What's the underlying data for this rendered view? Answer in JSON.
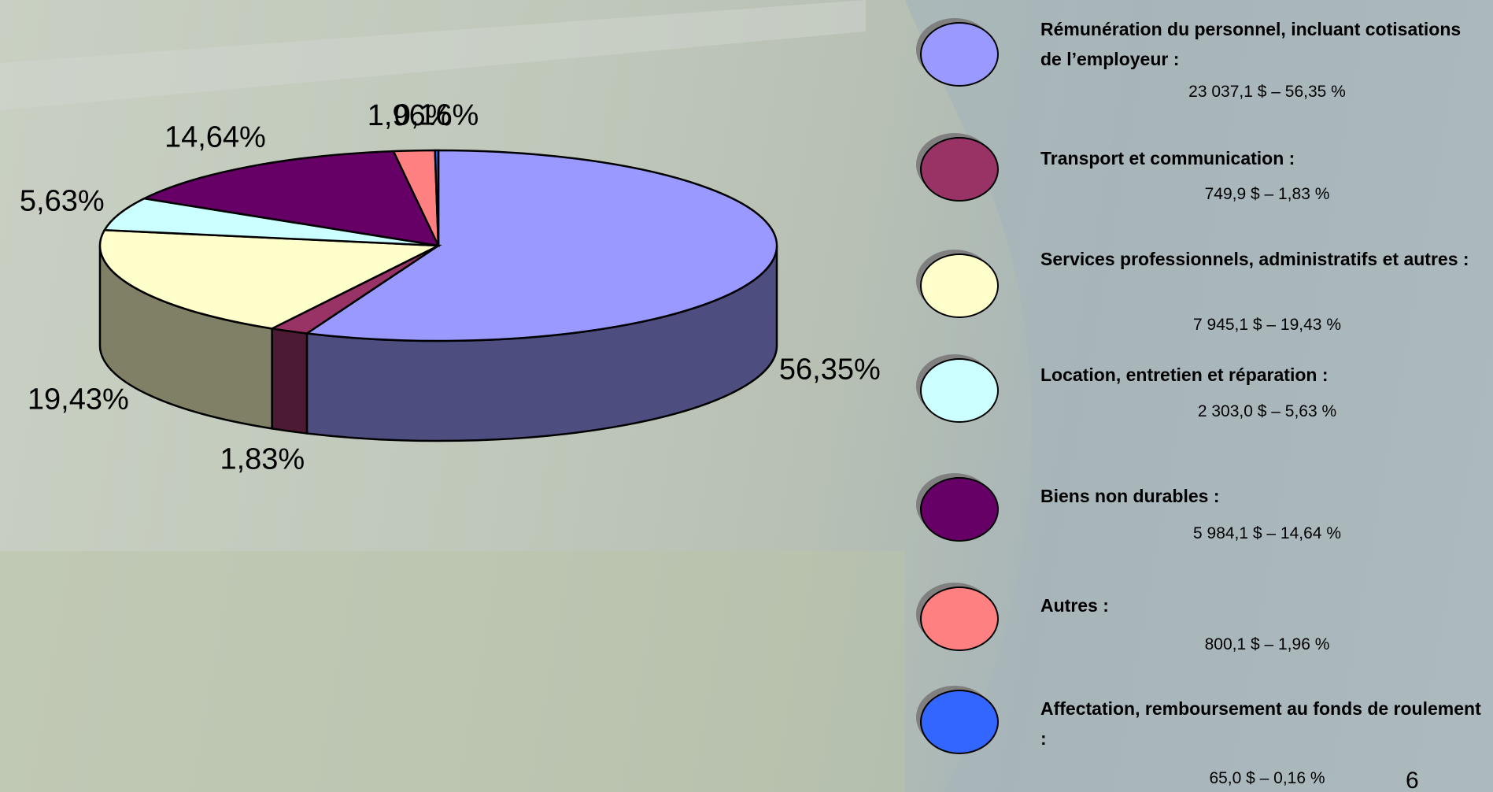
{
  "chart_data": {
    "type": "pie",
    "categories": [
      "Rémunération du personnel, incluant cotisations de l’employeur :",
      "Transport et communication :",
      "Services professionnels, administratifs et autres :",
      "Location, entretien et réparation :",
      "Biens non durables :",
      "Autres :",
      "Affectation, remboursement au fonds de roulement :"
    ],
    "values": [
      56.35,
      1.83,
      19.43,
      5.63,
      14.64,
      1.96,
      0.16
    ],
    "value_labels": [
      "56,35%",
      "1,83%",
      "19,43%",
      "5,63%",
      "14,64%",
      "1,96%",
      "0,16%"
    ],
    "value_details": [
      "23 037,1 $ – 56,35 %",
      "749,9 $ – 1,83 %",
      "7 945,1 $ – 19,43 %",
      "2 303,0 $ – 5,63 %",
      "5 984,1 $ – 14,64 %",
      "800,1 $ – 1,96 %",
      "65,0 $ – 0,16 %"
    ],
    "colors": [
      "#9999ff",
      "#993366",
      "#ffffcc",
      "#ccffff",
      "#660066",
      "#ff8080",
      "#3366ff"
    ]
  },
  "page_number": "6"
}
